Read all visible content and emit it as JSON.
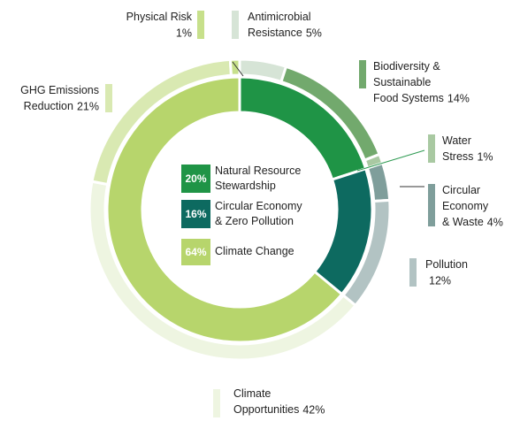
{
  "chart_data": {
    "type": "nested-donut",
    "inner": {
      "names": [
        "Natural Resource Stewardship",
        "Circular Economy & Zero Pollution",
        "Climate Change"
      ],
      "values": [
        20,
        16,
        64
      ],
      "value_labels": [
        "20%",
        "16%",
        "64%"
      ],
      "colors": [
        "#1f9446",
        "#0d6a60",
        "#b7d56c"
      ]
    },
    "outer": {
      "names": [
        "Antimicrobial Resistance",
        "Biodiversity & Sustainable Food Systems",
        "Water Stress",
        "Circular Economy & Waste",
        "Pollution",
        "Climate Opportunities",
        "GHG Emissions Reduction",
        "Physical Risk"
      ],
      "values": [
        5,
        14,
        1,
        4,
        12,
        42,
        21,
        1
      ],
      "value_labels": [
        "5%",
        "14%",
        "1%",
        "4%",
        "12%",
        "42%",
        "21%",
        "1%"
      ],
      "colors": [
        "#d6e4d6",
        "#72a96d",
        "#a9c9a2",
        "#7f9e9b",
        "#b2c3c3",
        "#eef5e1",
        "#d9e9b2",
        "#c7e08b"
      ]
    }
  }
}
